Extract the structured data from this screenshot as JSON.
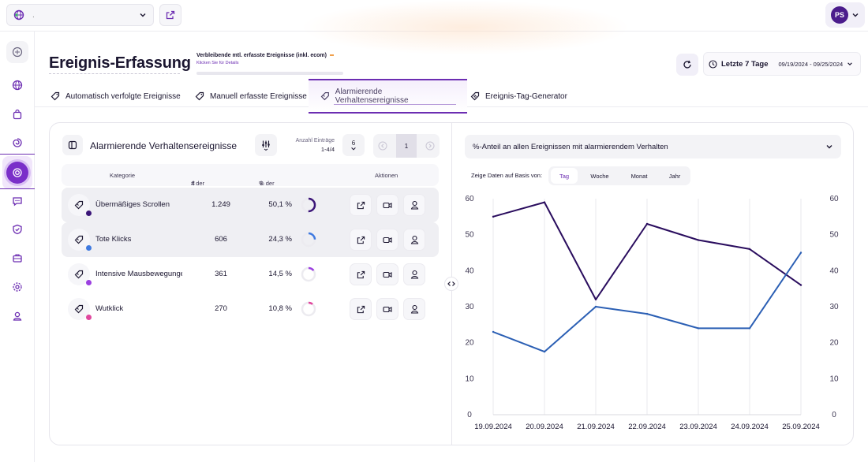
{
  "topbar": {
    "project_name": ".",
    "avatar_initials": "PS"
  },
  "header": {
    "title": "Ereignis-Erfassung",
    "quota_label": "Verbleibende mtl. erfasste Ereignisse (inkl. ecom)",
    "quota_link": "Klicken Sie für Details",
    "date_label": "Letzte 7 Tage",
    "date_range": "09/19/2024 - 09/25/2024"
  },
  "tabs": [
    {
      "label": "Automatisch verfolgte Ereignisse"
    },
    {
      "label": "Manuell erfasste Ereignisse"
    },
    {
      "label": "Alarmierende Verhaltensereignisse"
    },
    {
      "label": "Ereignis-Tag-Generator"
    }
  ],
  "left_panel": {
    "title": "Alarmierende Verhaltensereignisse",
    "entries_label": "Anzahl Einträge",
    "entries_value": "1-4/4",
    "per_page": "6",
    "current_page": "1",
    "columns": {
      "category": "Kategorie",
      "detections": "# der Erkennungen",
      "share": "% der Gesamtereignisse",
      "actions": "Aktionen"
    },
    "rows": [
      {
        "name": "Übermäßiges Scrollen",
        "count": "1.249",
        "pct": "50,1 %",
        "share": 0.501,
        "color": "#3b1578"
      },
      {
        "name": "Tote Klicks",
        "count": "606",
        "pct": "24,3 %",
        "share": 0.243,
        "color": "#3f7ae0"
      },
      {
        "name": "Intensive Mausbewegungen",
        "count": "361",
        "pct": "14,5 %",
        "share": 0.145,
        "color": "#9b3fe0"
      },
      {
        "name": "Wutklick",
        "count": "270",
        "pct": "10,8 %",
        "share": 0.108,
        "color": "#e0479e"
      }
    ]
  },
  "right_panel": {
    "metric_label": "%-Anteil an allen Ereignissen mit alarmierendem Verhalten",
    "basis_label": "Zeige Daten auf Basis von:",
    "basis_options": [
      "Tag",
      "Woche",
      "Monat",
      "Jahr"
    ],
    "basis_selected": "Tag"
  },
  "chart_data": {
    "type": "line",
    "x": [
      "19.09.2024",
      "20.09.2024",
      "21.09.2024",
      "22.09.2024",
      "23.09.2024",
      "24.09.2024",
      "25.09.2024"
    ],
    "series": [
      {
        "values": [
          55,
          59,
          32,
          53,
          48.5,
          46,
          36
        ],
        "color": "#2a0d5e"
      },
      {
        "values": [
          23,
          17.5,
          30,
          28,
          24,
          24,
          45
        ],
        "color": "#2b5fb4"
      }
    ],
    "ylim": [
      0,
      60
    ],
    "yticks": [
      0,
      10,
      20,
      30,
      40,
      50,
      60
    ],
    "ylabel": "",
    "xlabel": "",
    "grid": "vertical",
    "dual_axis_labels": true
  }
}
